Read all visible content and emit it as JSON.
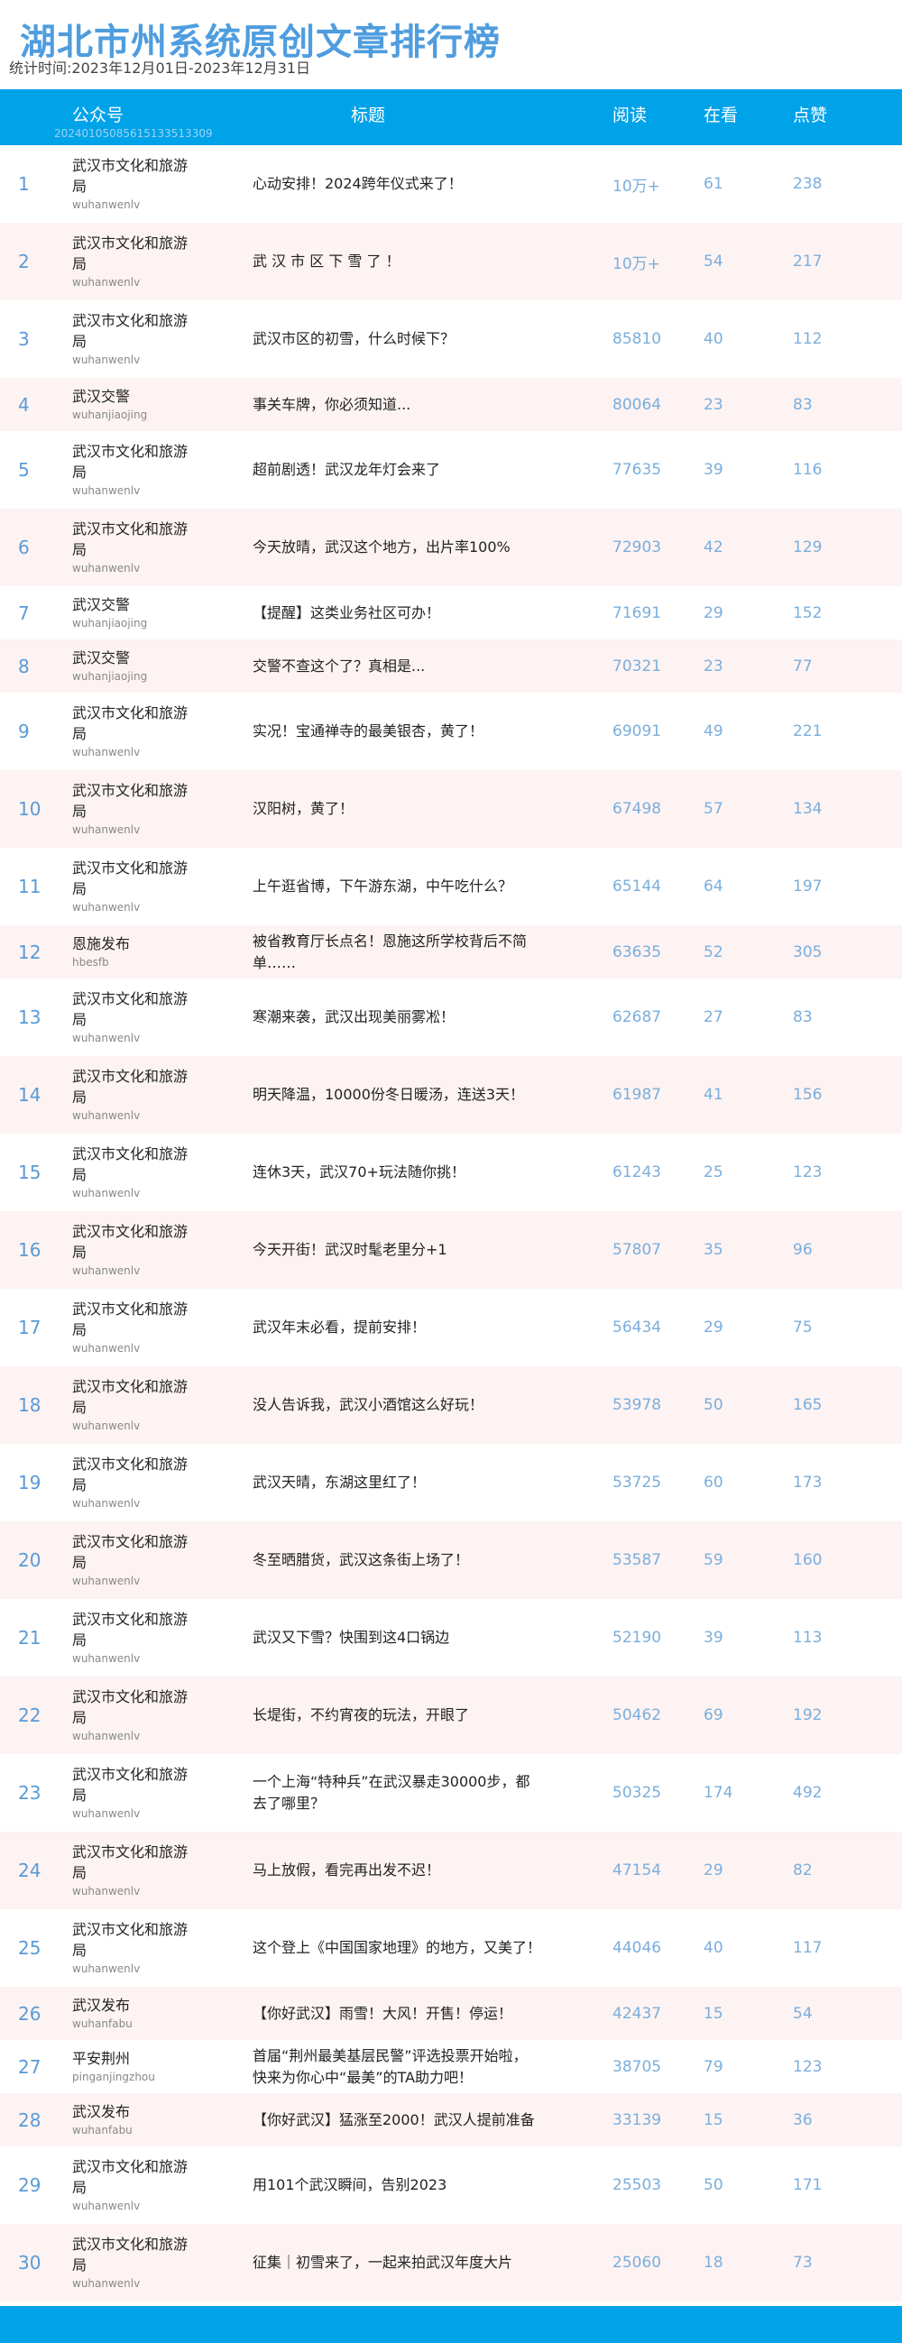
{
  "header": {
    "title": "湖北市州系统原创文章排行榜",
    "period": "统计时间:2023年12月01日-2023年12月31日"
  },
  "table": {
    "columns": [
      "公众号",
      "标题",
      "阅读",
      "在看",
      "点赞"
    ],
    "serial": "20240105085615133513309",
    "rows": [
      {
        "rank": "1",
        "name": "武汉市文化和旅游局",
        "id": "wuhanwenlv",
        "title": "心动安排！2024跨年仪式来了！",
        "read": "10万+",
        "watch": "61",
        "like": "238"
      },
      {
        "rank": "2",
        "name": "武汉市文化和旅游局",
        "id": "wuhanwenlv",
        "title": "武 汉 市 区 下 雪 了 ！",
        "read": "10万+",
        "watch": "54",
        "like": "217"
      },
      {
        "rank": "3",
        "name": "武汉市文化和旅游局",
        "id": "wuhanwenlv",
        "title": "武汉市区的初雪，什么时候下？",
        "read": "85810",
        "watch": "40",
        "like": "112"
      },
      {
        "rank": "4",
        "name": "武汉交警",
        "id": "wuhanjiaojing",
        "title": "事关车牌，你必须知道...",
        "read": "80064",
        "watch": "23",
        "like": "83"
      },
      {
        "rank": "5",
        "name": "武汉市文化和旅游局",
        "id": "wuhanwenlv",
        "title": "超前剧透！武汉龙年灯会来了",
        "read": "77635",
        "watch": "39",
        "like": "116"
      },
      {
        "rank": "6",
        "name": "武汉市文化和旅游局",
        "id": "wuhanwenlv",
        "title": "今天放晴，武汉这个地方，出片率100%",
        "read": "72903",
        "watch": "42",
        "like": "129"
      },
      {
        "rank": "7",
        "name": "武汉交警",
        "id": "wuhanjiaojing",
        "title": "【提醒】这类业务社区可办！",
        "read": "71691",
        "watch": "29",
        "like": "152"
      },
      {
        "rank": "8",
        "name": "武汉交警",
        "id": "wuhanjiaojing",
        "title": "交警不查这个了？真相是...",
        "read": "70321",
        "watch": "23",
        "like": "77"
      },
      {
        "rank": "9",
        "name": "武汉市文化和旅游局",
        "id": "wuhanwenlv",
        "title": "实况！宝通禅寺的最美银杏，黄了！",
        "read": "69091",
        "watch": "49",
        "like": "221"
      },
      {
        "rank": "10",
        "name": "武汉市文化和旅游局",
        "id": "wuhanwenlv",
        "title": "汉阳树，黄了！",
        "read": "67498",
        "watch": "57",
        "like": "134"
      },
      {
        "rank": "11",
        "name": "武汉市文化和旅游局",
        "id": "wuhanwenlv",
        "title": "上午逛省博，下午游东湖，中午吃什么？",
        "read": "65144",
        "watch": "64",
        "like": "197"
      },
      {
        "rank": "12",
        "name": "恩施发布",
        "id": "hbesfb",
        "title": "被省教育厅长点名！恩施这所学校背后不简单……",
        "read": "63635",
        "watch": "52",
        "like": "305"
      },
      {
        "rank": "13",
        "name": "武汉市文化和旅游局",
        "id": "wuhanwenlv",
        "title": "寒潮来袭，武汉出现美丽雾凇！",
        "read": "62687",
        "watch": "27",
        "like": "83"
      },
      {
        "rank": "14",
        "name": "武汉市文化和旅游局",
        "id": "wuhanwenlv",
        "title": "明天降温，10000份冬日暖汤，连送3天！",
        "read": "61987",
        "watch": "41",
        "like": "156"
      },
      {
        "rank": "15",
        "name": "武汉市文化和旅游局",
        "id": "wuhanwenlv",
        "title": "连休3天，武汉70+玩法随你挑！",
        "read": "61243",
        "watch": "25",
        "like": "123"
      },
      {
        "rank": "16",
        "name": "武汉市文化和旅游局",
        "id": "wuhanwenlv",
        "title": "今天开街！武汉时髦老里分+1",
        "read": "57807",
        "watch": "35",
        "like": "96"
      },
      {
        "rank": "17",
        "name": "武汉市文化和旅游局",
        "id": "wuhanwenlv",
        "title": "武汉年末必看，提前安排！",
        "read": "56434",
        "watch": "29",
        "like": "75"
      },
      {
        "rank": "18",
        "name": "武汉市文化和旅游局",
        "id": "wuhanwenlv",
        "title": "没人告诉我，武汉小酒馆这么好玩！",
        "read": "53978",
        "watch": "50",
        "like": "165"
      },
      {
        "rank": "19",
        "name": "武汉市文化和旅游局",
        "id": "wuhanwenlv",
        "title": "武汉天晴，东湖这里红了！",
        "read": "53725",
        "watch": "60",
        "like": "173"
      },
      {
        "rank": "20",
        "name": "武汉市文化和旅游局",
        "id": "wuhanwenlv",
        "title": "冬至晒腊货，武汉这条街上场了！",
        "read": "53587",
        "watch": "59",
        "like": "160"
      },
      {
        "rank": "21",
        "name": "武汉市文化和旅游局",
        "id": "wuhanwenlv",
        "title": "武汉又下雪？快围到这4口锅边",
        "read": "52190",
        "watch": "39",
        "like": "113"
      },
      {
        "rank": "22",
        "name": "武汉市文化和旅游局",
        "id": "wuhanwenlv",
        "title": "长堤街，不约宵夜的玩法，开眼了",
        "read": "50462",
        "watch": "69",
        "like": "192"
      },
      {
        "rank": "23",
        "name": "武汉市文化和旅游局",
        "id": "wuhanwenlv",
        "title": "一个上海“特种兵”在武汉暴走30000步，都去了哪里？",
        "read": "50325",
        "watch": "174",
        "like": "492"
      },
      {
        "rank": "24",
        "name": "武汉市文化和旅游局",
        "id": "wuhanwenlv",
        "title": "马上放假，看完再出发不迟！",
        "read": "47154",
        "watch": "29",
        "like": "82"
      },
      {
        "rank": "25",
        "name": "武汉市文化和旅游局",
        "id": "wuhanwenlv",
        "title": "这个登上《中国国家地理》的地方，又美了！",
        "read": "44046",
        "watch": "40",
        "like": "117"
      },
      {
        "rank": "26",
        "name": "武汉发布",
        "id": "wuhanfabu",
        "title": "【你好武汉】雨雪！大风！开售！停运！",
        "read": "42437",
        "watch": "15",
        "like": "54"
      },
      {
        "rank": "27",
        "name": "平安荆州",
        "id": "pinganjingzhou",
        "title": "首届“荆州最美基层民警”评选投票开始啦，快来为你心中“最美”的TA助力吧！",
        "read": "38705",
        "watch": "79",
        "like": "123"
      },
      {
        "rank": "28",
        "name": "武汉发布",
        "id": "wuhanfabu",
        "title": "【你好武汉】猛涨至2000！武汉人提前准备",
        "read": "33139",
        "watch": "15",
        "like": "36"
      },
      {
        "rank": "29",
        "name": "武汉市文化和旅游局",
        "id": "wuhanwenlv",
        "title": "用101个武汉瞬间，告别2023",
        "read": "25503",
        "watch": "50",
        "like": "171"
      },
      {
        "rank": "30",
        "name": "武汉市文化和旅游局",
        "id": "wuhanwenlv",
        "title": "征集｜初雪来了，一起来拍武汉年度大片",
        "read": "25060",
        "watch": "18",
        "like": "73"
      }
    ]
  },
  "colors": {
    "accent": "#00a2e8",
    "title": "#4f9ddf",
    "numbers": "#7aaedc",
    "alt_row": "#fdf3f3"
  }
}
